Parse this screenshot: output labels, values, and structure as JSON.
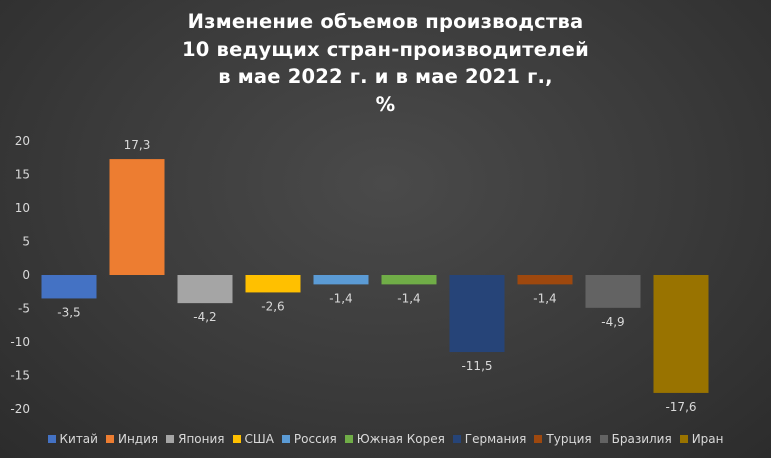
{
  "chart_data": {
    "type": "bar",
    "title_lines": [
      "Изменение объемов производства",
      "10 ведущих стран-производителей",
      "в мае 2022 г. и в мае 2021 г.,",
      "%"
    ],
    "categories": [
      "Китай",
      "Индия",
      "Япония",
      "США",
      "Россия",
      "Южная Корея",
      "Германия",
      "Турция",
      "Бразилия",
      "Иран"
    ],
    "values": [
      -3.5,
      17.3,
      -4.2,
      -2.6,
      -1.4,
      -1.4,
      -11.5,
      -1.4,
      -4.9,
      -17.6
    ],
    "value_labels": [
      "-3,5",
      "17,3",
      "-4,2",
      "-2,6",
      "-1,4",
      "-1,4",
      "-11,5",
      "-1,4",
      "-4,9",
      "-17,6"
    ],
    "colors": [
      "#4472C4",
      "#ED7D31",
      "#A5A5A5",
      "#FFC000",
      "#5B9BD5",
      "#70AD47",
      "#264478",
      "#9E480E",
      "#636363",
      "#997300"
    ],
    "yticks": [
      "20",
      "15",
      "10",
      "5",
      "0",
      "-5",
      "-10",
      "-15",
      "-20"
    ],
    "ytick_values": [
      20,
      15,
      10,
      5,
      0,
      -5,
      -10,
      -15,
      -20
    ],
    "ylim": [
      -20,
      20
    ],
    "xlabel": "",
    "ylabel": "",
    "grid": false,
    "legend_position": "bottom"
  }
}
